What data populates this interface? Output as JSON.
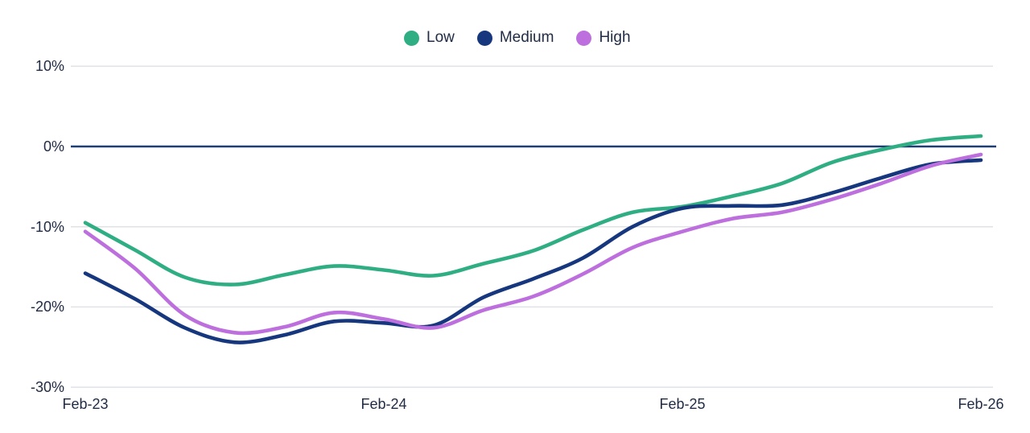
{
  "colors": {
    "background": "#ffffff",
    "grid": "#e1e2e6",
    "zero_line": "#1c3f77",
    "text": "#212c44"
  },
  "chart_data": {
    "type": "line",
    "title": "",
    "xlabel": "",
    "ylabel": "",
    "unit": "%",
    "grid": "horizontal",
    "zero_line": true,
    "legend_position": "top-center",
    "ylim": [
      -30,
      10
    ],
    "y_ticks": [
      10,
      0,
      -10,
      -20,
      -30
    ],
    "y_tick_labels": [
      "10%",
      "0%",
      "-10%",
      "-20%",
      "-30%"
    ],
    "x_tick_months": [
      0,
      12,
      24,
      36
    ],
    "x_tick_labels": [
      "Feb-23",
      "Feb-24",
      "Feb-25",
      "Feb-26"
    ],
    "x_months": [
      0,
      2,
      4,
      6,
      8,
      10,
      12,
      14,
      16,
      18,
      20,
      22,
      24,
      26,
      28,
      30,
      32,
      34,
      36
    ],
    "series": [
      {
        "name": "Low",
        "color": "#30ae83",
        "values": [
          -9.5,
          -12.9,
          -16.3,
          -17.2,
          -16.0,
          -14.9,
          -15.4,
          -16.1,
          -14.6,
          -13.0,
          -10.4,
          -8.2,
          -7.5,
          -6.2,
          -4.6,
          -2.0,
          -0.4,
          0.8,
          1.3
        ]
      },
      {
        "name": "Medium",
        "color": "#16377d",
        "values": [
          -15.8,
          -19.0,
          -22.6,
          -24.4,
          -23.5,
          -21.8,
          -22.0,
          -22.3,
          -18.8,
          -16.5,
          -13.9,
          -10.0,
          -7.7,
          -7.4,
          -7.3,
          -5.8,
          -3.9,
          -2.2,
          -1.7
        ]
      },
      {
        "name": "High",
        "color": "#bd6fde",
        "values": [
          -10.6,
          -15.2,
          -21.0,
          -23.2,
          -22.5,
          -20.7,
          -21.5,
          -22.6,
          -20.4,
          -18.7,
          -15.9,
          -12.6,
          -10.6,
          -9.0,
          -8.2,
          -6.6,
          -4.6,
          -2.4,
          -1.0
        ]
      }
    ]
  }
}
